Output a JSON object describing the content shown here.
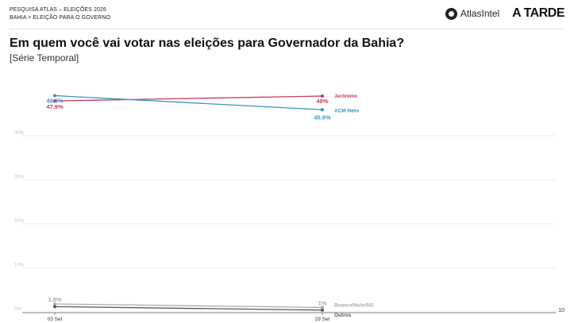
{
  "header": {
    "eyebrow_line1": "PESQUISA ATLAS – ELEIÇÕES 2026",
    "eyebrow_line2": "BAHIA > ELEIÇÃO PARA O GOVERNO",
    "logo_atlas": "AtlasIntel",
    "logo_atarde": "A TARDE"
  },
  "title": "Em quem você vai votar nas eleições para Governador da Bahia?",
  "subtitle": "[Série Temporal]",
  "page_number": "10",
  "chart_data": {
    "type": "line",
    "categories": [
      "03 Set",
      "29 Set"
    ],
    "ylim": [
      0,
      50
    ],
    "yticks": [
      0,
      10,
      20,
      30,
      40
    ],
    "ytick_labels": [
      "0%",
      "10%",
      "20%",
      "30%",
      "40%"
    ],
    "grid": true,
    "series": [
      {
        "name": "Jerônimo",
        "color": "#c8385f",
        "values": [
          47.9,
          49.0
        ],
        "labels": [
          "47.9%",
          "49%"
        ]
      },
      {
        "name": "ACM Neto",
        "color": "#3a93c2",
        "values": [
          49.1,
          45.9
        ],
        "labels": [
          "49.1%",
          "45.9%"
        ]
      },
      {
        "name": "Branco/Nulo/NS",
        "color": "#aaaaaa",
        "values": [
          1.8,
          1.0
        ],
        "labels": [
          "1.8%",
          "1%"
        ]
      },
      {
        "name": "Outros",
        "color": "#555555",
        "values": [
          1.2,
          0.4
        ],
        "labels": [
          "",
          ""
        ]
      }
    ]
  }
}
